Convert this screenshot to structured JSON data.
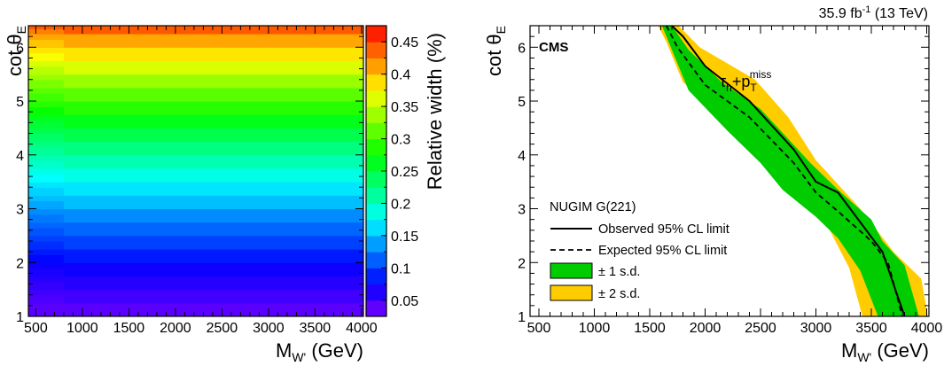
{
  "colors": {
    "two_sd_band": "#ffcc00",
    "one_sd_band": "#00cc00",
    "frame": "#000000"
  },
  "chart_data": [
    {
      "type": "heatmap",
      "xlabel": {
        "main": "M",
        "sub": "W'",
        "unit": " (GeV)"
      },
      "ylabel": {
        "main": "cot θ",
        "sub": "E"
      },
      "zlabel": "Relative width (%)",
      "xlim": [
        420,
        4020
      ],
      "ylim": [
        1,
        6.4
      ],
      "zlim": [
        0.025,
        0.475
      ],
      "x_ticks": [
        500,
        1000,
        1500,
        2000,
        2500,
        3000,
        3500,
        4000
      ],
      "y_ticks": [
        1,
        2,
        3,
        4,
        5,
        6
      ],
      "z_ticks": [
        0.05,
        0.1,
        0.15,
        0.2,
        0.25,
        0.3,
        0.35,
        0.4,
        0.45
      ],
      "palette": "rainbow (violet to red)",
      "y_bins": [
        1.0,
        1.25,
        1.5,
        1.75,
        2.0,
        2.25,
        2.5,
        2.75,
        3.0,
        3.25,
        3.5,
        3.75,
        4.0,
        4.25,
        4.5,
        4.75,
        5.0,
        5.25,
        5.5,
        5.75,
        6.0,
        6.25
      ],
      "z_values": [
        0.04,
        0.05,
        0.06,
        0.07,
        0.085,
        0.1,
        0.115,
        0.13,
        0.15,
        0.165,
        0.185,
        0.205,
        0.225,
        0.245,
        0.265,
        0.29,
        0.31,
        0.335,
        0.36,
        0.385,
        0.41,
        0.44
      ]
    },
    {
      "type": "area",
      "title": "",
      "header_right": {
        "lumi_base": "35.9 fb",
        "lumi_exp": "-1",
        "energy": " (13 TeV)"
      },
      "experiment": "CMS",
      "channel": {
        "tau": "τ",
        "tau_sub": "h",
        "plus_p": "+p",
        "p_sub": "T",
        "p_sup": "miss"
      },
      "xlabel": {
        "main": "M",
        "sub": "W'",
        "unit": " (GeV)"
      },
      "ylabel": {
        "main": "cot θ",
        "sub": "E"
      },
      "xlim": [
        420,
        4020
      ],
      "ylim": [
        1,
        6.4
      ],
      "x_ticks": [
        500,
        1000,
        1500,
        2000,
        2500,
        3000,
        3500,
        4000
      ],
      "y_ticks": [
        1,
        2,
        3,
        4,
        5,
        6
      ],
      "legend": {
        "header": "NUGIM G(221)",
        "observed": "Observed 95% CL limit",
        "expected": "Expected 95% CL limit",
        "one_sd": "± 1 s.d.",
        "two_sd": "± 2 s.d."
      },
      "series": [
        {
          "name": "Observed 95% CL limit",
          "style": "solid",
          "x": [
            1700,
            1800,
            2000,
            2400,
            2800,
            3000,
            3200,
            3600,
            3800
          ],
          "y": [
            6.4,
            6.2,
            5.65,
            5.0,
            4.1,
            3.5,
            3.3,
            2.2,
            1.0
          ]
        },
        {
          "name": "Expected 95% CL limit",
          "style": "dashed",
          "x": [
            1650,
            1750,
            2000,
            2400,
            2800,
            3000,
            3200,
            3500,
            3650,
            3780
          ],
          "y": [
            6.4,
            6.0,
            5.3,
            4.7,
            3.85,
            3.3,
            2.95,
            2.4,
            2.0,
            1.0
          ]
        },
        {
          "name": "± 1 s.d.",
          "style": "band",
          "lower_x": [
            1610,
            1700,
            1850,
            2200,
            2500,
            2700,
            3000,
            3200,
            3400,
            3560
          ],
          "lower_y": [
            6.4,
            5.95,
            5.2,
            4.45,
            3.85,
            3.35,
            2.85,
            2.45,
            1.85,
            1.0
          ],
          "upper_x": [
            1700,
            1850,
            2150,
            2500,
            2950,
            3200,
            3500,
            3600,
            3800,
            3930
          ],
          "upper_y": [
            6.4,
            5.95,
            5.35,
            4.85,
            3.85,
            3.35,
            2.8,
            2.4,
            1.95,
            1.0
          ]
        },
        {
          "name": "± 2 s.d.",
          "style": "band",
          "lower_x": [
            1575,
            1650,
            1800,
            2000,
            2350,
            2600,
            2800,
            3100,
            3300,
            3420
          ],
          "lower_y": [
            6.4,
            6.1,
            5.35,
            5.0,
            4.3,
            3.75,
            3.35,
            2.7,
            1.9,
            1.0
          ],
          "upper_x": [
            1760,
            1950,
            2450,
            2750,
            3000,
            3400,
            3700,
            3950,
            4010
          ],
          "upper_y": [
            6.4,
            6.0,
            5.4,
            4.7,
            3.9,
            3.0,
            2.2,
            1.7,
            1.0
          ]
        }
      ]
    }
  ]
}
